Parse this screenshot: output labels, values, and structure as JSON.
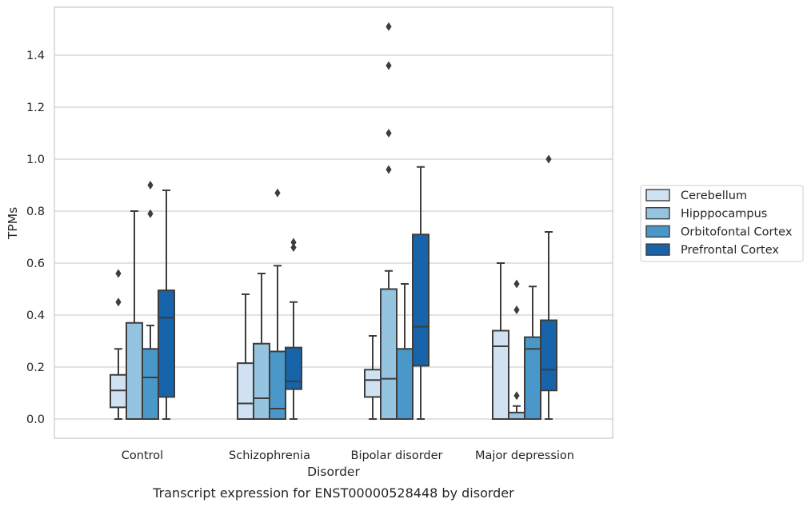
{
  "caption": "Transcript expression for ENST00000528448 by disorder",
  "chart_data": {
    "type": "box",
    "xlabel": "Disorder",
    "ylabel": "TPMs",
    "ylim": [
      -0.075,
      1.58
    ],
    "yticks": [
      0.0,
      0.2,
      0.4,
      0.6,
      0.8,
      1.0,
      1.2,
      1.4
    ],
    "ytick_labels": [
      "0.0",
      "0.2",
      "0.4",
      "0.6",
      "0.8",
      "1.0",
      "1.2",
      "1.4"
    ],
    "categories": [
      "Control",
      "Schizophrenia",
      "Bipolar disorder",
      "Major depression"
    ],
    "grid": "horizontal",
    "legend_position": "right",
    "series": [
      {
        "name": "Cerebellum",
        "color": "#d0e1f2",
        "boxes": [
          {
            "whislo": 0.0,
            "q1": 0.045,
            "med": 0.11,
            "q3": 0.17,
            "whishi": 0.27,
            "fliers": [
              0.45,
              0.56
            ]
          },
          {
            "whislo": 0.0,
            "q1": 0.0,
            "med": 0.06,
            "q3": 0.215,
            "whishi": 0.48,
            "fliers": []
          },
          {
            "whislo": 0.0,
            "q1": 0.085,
            "med": 0.15,
            "q3": 0.19,
            "whishi": 0.32,
            "fliers": []
          },
          {
            "whislo": 0.0,
            "q1": 0.0,
            "med": 0.28,
            "q3": 0.34,
            "whishi": 0.6,
            "fliers": []
          }
        ]
      },
      {
        "name": "Hipppocampus",
        "color": "#94c4df",
        "boxes": [
          {
            "whislo": 0.0,
            "q1": 0.0,
            "med": 0.0,
            "q3": 0.37,
            "whishi": 0.8,
            "fliers": []
          },
          {
            "whislo": 0.0,
            "q1": 0.0,
            "med": 0.08,
            "q3": 0.29,
            "whishi": 0.56,
            "fliers": []
          },
          {
            "whislo": 0.0,
            "q1": 0.0,
            "med": 0.155,
            "q3": 0.5,
            "whishi": 0.57,
            "fliers": [
              0.96,
              1.1,
              1.36,
              1.51
            ]
          },
          {
            "whislo": 0.0,
            "q1": 0.0,
            "med": 0.0,
            "q3": 0.025,
            "whishi": 0.05,
            "fliers": [
              0.09,
              0.42,
              0.52
            ]
          }
        ]
      },
      {
        "name": "Orbitofontal Cortex",
        "color": "#4a98c9",
        "boxes": [
          {
            "whislo": 0.0,
            "q1": 0.0,
            "med": 0.16,
            "q3": 0.27,
            "whishi": 0.36,
            "fliers": [
              0.79,
              0.9
            ]
          },
          {
            "whislo": 0.0,
            "q1": 0.0,
            "med": 0.04,
            "q3": 0.26,
            "whishi": 0.59,
            "fliers": [
              0.87
            ]
          },
          {
            "whislo": 0.0,
            "q1": 0.0,
            "med": 0.0,
            "q3": 0.27,
            "whishi": 0.52,
            "fliers": []
          },
          {
            "whislo": 0.0,
            "q1": 0.0,
            "med": 0.27,
            "q3": 0.315,
            "whishi": 0.51,
            "fliers": []
          }
        ]
      },
      {
        "name": "Prefrontal Cortex",
        "color": "#1764ab",
        "boxes": [
          {
            "whislo": 0.0,
            "q1": 0.085,
            "med": 0.39,
            "q3": 0.495,
            "whishi": 0.88,
            "fliers": []
          },
          {
            "whislo": 0.0,
            "q1": 0.115,
            "med": 0.145,
            "q3": 0.275,
            "whishi": 0.45,
            "fliers": [
              0.66,
              0.68
            ]
          },
          {
            "whislo": 0.0,
            "q1": 0.205,
            "med": 0.355,
            "q3": 0.71,
            "whishi": 0.97,
            "fliers": []
          },
          {
            "whislo": 0.0,
            "q1": 0.11,
            "med": 0.19,
            "q3": 0.38,
            "whishi": 0.72,
            "fliers": [
              1.0
            ]
          }
        ]
      }
    ]
  }
}
